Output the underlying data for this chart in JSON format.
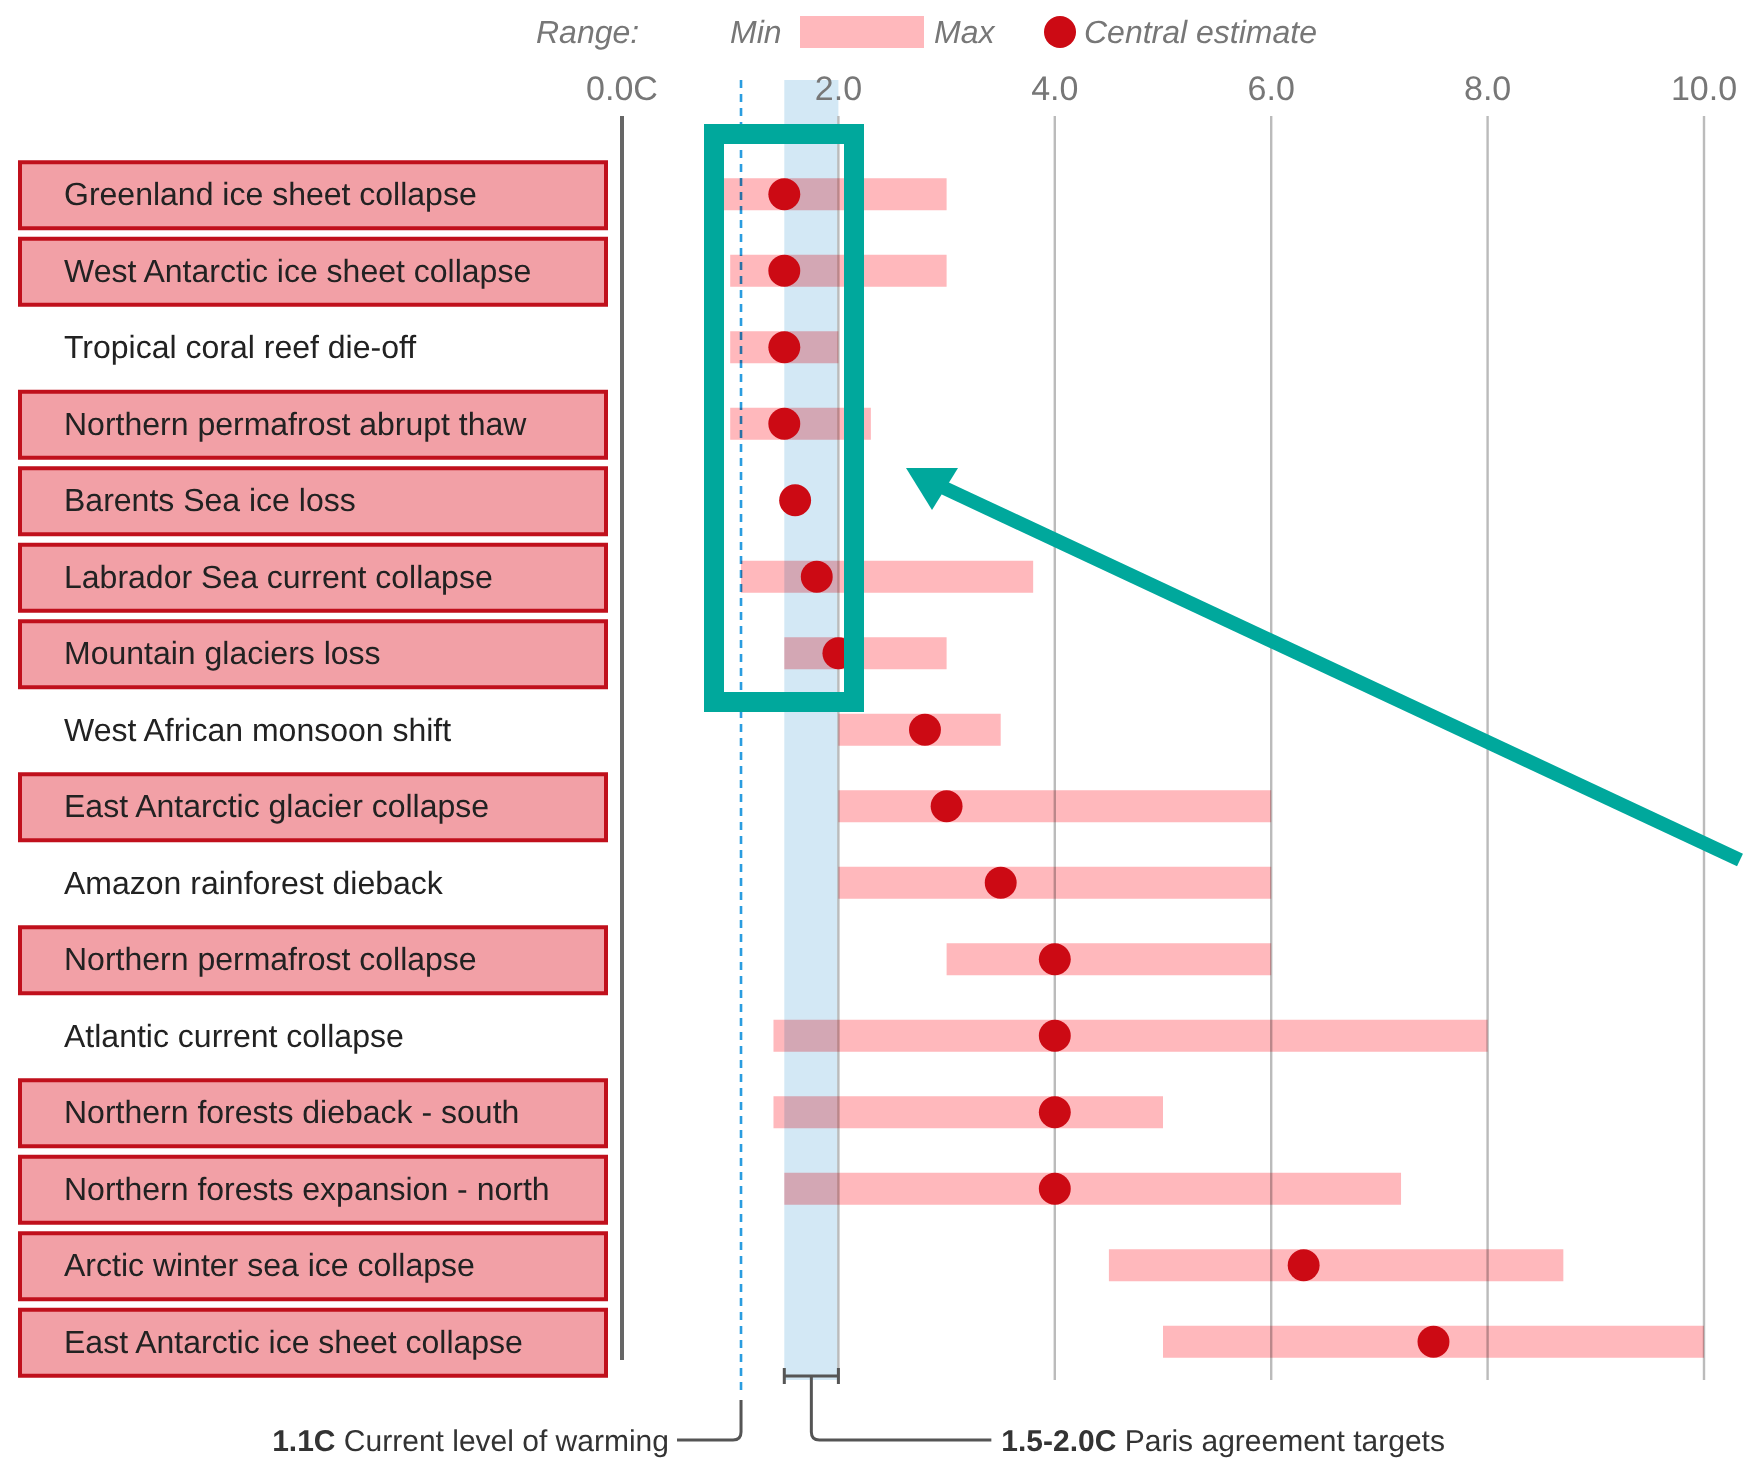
{
  "chart_data": {
    "type": "bar",
    "orientation": "horizontal",
    "categories": [
      "Greenland ice sheet collapse",
      "West Antarctic ice sheet collapse",
      "Tropical coral reef die-off",
      "Northern permafrost abrupt thaw",
      "Barents Sea ice loss",
      "Labrador Sea current collapse",
      "Mountain glaciers loss",
      "West African monsoon shift",
      "East Antarctic glacier collapse",
      "Amazon rainforest dieback",
      "Northern permafrost collapse",
      "Atlantic current collapse",
      "Northern forests dieback - south",
      "Northern forests expansion - north",
      "Arctic winter sea ice collapse",
      "East Antarctic ice sheet collapse"
    ],
    "series": [
      {
        "type": "bar",
        "color": "#ffb8bc",
        "base": [
          0.9,
          1.0,
          1.0,
          1.0,
          null,
          1.1,
          1.5,
          2.0,
          2.0,
          2.0,
          3.0,
          1.4,
          1.4,
          1.5,
          4.5,
          5.0
        ],
        "values": [
          2.1,
          2.0,
          1.0,
          1.3,
          null,
          2.7,
          1.5,
          1.5,
          4.0,
          4.0,
          3.0,
          6.6,
          3.6,
          5.7,
          4.2,
          5.0
        ]
      },
      {
        "type": "scatter",
        "name": "Central estimate",
        "color": "#cc0a14",
        "marker": "circle",
        "values": [
          1.5,
          1.5,
          1.5,
          1.5,
          1.6,
          1.8,
          2.0,
          2.8,
          3.0,
          3.5,
          4.0,
          4.0,
          4.0,
          4.0,
          6.3,
          7.5
        ]
      }
    ],
    "xlim": [
      0,
      10
    ],
    "xticks": [
      {
        "value": 0,
        "label": "0.0C"
      },
      {
        "value": 2,
        "label": "2.0"
      },
      {
        "value": 4,
        "label": "4.0"
      },
      {
        "value": 6,
        "label": "6.0"
      },
      {
        "value": 8,
        "label": "8.0"
      },
      {
        "value": 10,
        "label": "10.0"
      }
    ],
    "grid": "x",
    "legend": "top",
    "annotations": [
      "Range:",
      "Min",
      "Max"
    ],
    "ref_lines": [
      {
        "axis": "x",
        "value": 1.1,
        "label": "1.1C Current level of warming",
        "color": "#2a9de0",
        "line_style": "dashed"
      }
    ],
    "bands": [
      {
        "axis": "x",
        "from": 1.5,
        "to": 2.0,
        "label": "1.5-2.0C Paris agreement targets",
        "color": "#d3e8f5"
      }
    ]
  }
}
